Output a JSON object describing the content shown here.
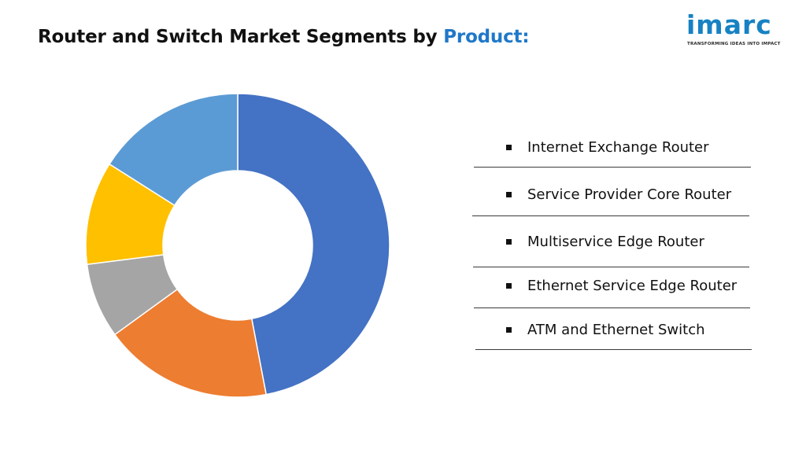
{
  "header": {
    "title_prefix": "Router and Switch Market Segments by ",
    "title_highlight": "Product:"
  },
  "logo": {
    "wordmark": "imarc",
    "tagline": "TRANSFORMING IDEAS INTO IMPACT"
  },
  "colors": {
    "accent": "#1f78c8",
    "logo": "#1682c3"
  },
  "chart_data": {
    "type": "pie",
    "style": "donut",
    "legend_position": "right",
    "labels": [
      "Internet Exchange Router",
      "Service Provider Core Router",
      "Multiservice Edge Router",
      "Ethernet Service Edge Router",
      "ATM and Ethernet Switch"
    ],
    "values": [
      47,
      18,
      8,
      11,
      16
    ],
    "colors": [
      "#4472c4",
      "#ed7d31",
      "#a5a5a5",
      "#ffc000",
      "#5b9bd5"
    ]
  }
}
